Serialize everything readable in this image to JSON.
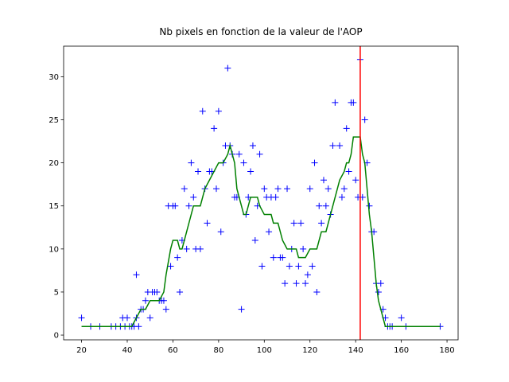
{
  "chart_data": {
    "type": "scatter",
    "title": "Nb pixels en fonction de la valeur de l'AOP",
    "xlim": [
      12.15,
      184.85
    ],
    "ylim": [
      -0.55,
      33.55
    ],
    "xticks": [
      20,
      40,
      60,
      80,
      100,
      120,
      140,
      160,
      180
    ],
    "yticks": [
      0,
      5,
      10,
      15,
      20,
      25,
      30
    ],
    "series": [
      {
        "type": "scatter",
        "marker": "+",
        "color": "#0000ff",
        "x": [
          20,
          24,
          28,
          33,
          35,
          37,
          38,
          39,
          40,
          41,
          42,
          43,
          44,
          44,
          45,
          46,
          47,
          48,
          49,
          50,
          51,
          52,
          53,
          54,
          55,
          56,
          57,
          58,
          59,
          60,
          61,
          62,
          63,
          64,
          65,
          66,
          67,
          68,
          69,
          70,
          71,
          72,
          73,
          74,
          75,
          76,
          77,
          78,
          79,
          80,
          81,
          82,
          83,
          84,
          85,
          86,
          87,
          88,
          89,
          90,
          91,
          92,
          93,
          94,
          95,
          96,
          97,
          98,
          99,
          100,
          101,
          102,
          103,
          104,
          105,
          106,
          107,
          108,
          109,
          110,
          111,
          112,
          113,
          114,
          115,
          116,
          117,
          118,
          119,
          120,
          121,
          122,
          123,
          124,
          125,
          126,
          127,
          128,
          129,
          130,
          131,
          133,
          134,
          135,
          136,
          137,
          138,
          139,
          140,
          141,
          142,
          143,
          144,
          145,
          146,
          147,
          148,
          149,
          150,
          151,
          152,
          153,
          154,
          155,
          156,
          160,
          162,
          177
        ],
        "values": [
          2,
          1,
          1,
          1,
          1,
          1,
          2,
          1,
          2,
          1,
          1,
          1,
          7,
          2,
          1,
          3,
          3,
          4,
          5,
          2,
          5,
          5,
          5,
          4,
          4,
          4,
          3,
          15,
          8,
          15,
          15,
          9,
          5,
          11,
          17,
          10,
          15,
          20,
          16,
          10,
          19,
          10,
          26,
          17,
          13,
          19,
          19,
          24,
          17,
          26,
          12,
          20,
          22,
          31,
          22,
          21,
          16,
          16,
          21,
          3,
          20,
          14,
          16,
          19,
          22,
          11,
          15,
          21,
          8,
          17,
          16,
          12,
          16,
          9,
          16,
          17,
          9,
          9,
          6,
          17,
          8,
          10,
          13,
          6,
          8,
          13,
          10,
          6,
          7,
          17,
          8,
          20,
          5,
          15,
          13,
          18,
          15,
          17,
          14,
          22,
          27,
          22,
          16,
          17,
          24,
          19,
          27,
          27,
          18,
          16,
          32,
          16,
          25,
          20,
          15,
          12,
          12,
          6,
          5,
          6,
          3,
          2,
          1,
          1,
          1,
          2,
          1,
          1
        ]
      },
      {
        "type": "line",
        "color": "#008000",
        "x": [
          20,
          42,
          44,
          46,
          48,
          50,
          54,
          56,
          57,
          59,
          60,
          62,
          63,
          64,
          66,
          68,
          69,
          72,
          74,
          76,
          78,
          80,
          82,
          84,
          85,
          86,
          87,
          88,
          89,
          90,
          91,
          92,
          93,
          94,
          97,
          98,
          100,
          103,
          104,
          106,
          108,
          110,
          114,
          115,
          118,
          120,
          123,
          125,
          127,
          129,
          131,
          133,
          135,
          136,
          137,
          138,
          139,
          142,
          143,
          144,
          145,
          146,
          147,
          148,
          149,
          150,
          151,
          152,
          153,
          160,
          177
        ],
        "values": [
          1,
          1,
          2,
          3,
          3,
          4,
          4,
          5,
          7,
          10,
          11,
          11,
          10,
          10,
          12,
          14,
          15,
          15,
          17,
          18,
          19,
          20,
          20,
          21,
          22,
          21,
          20,
          17,
          16,
          15,
          14,
          14,
          15,
          16,
          16,
          15,
          14,
          14,
          13,
          13,
          11,
          10,
          10,
          9,
          9,
          10,
          10,
          12,
          12,
          14,
          16,
          18,
          19,
          20,
          20,
          21,
          23,
          23,
          21,
          20,
          17,
          14,
          12,
          9,
          6,
          4,
          3,
          2,
          1,
          1,
          1
        ]
      }
    ],
    "vline": {
      "value": 142,
      "color": "#ff0000"
    }
  }
}
